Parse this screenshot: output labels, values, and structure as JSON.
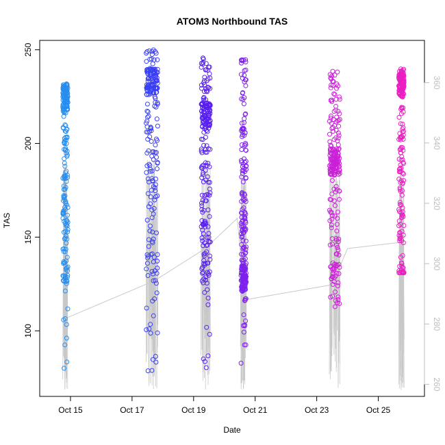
{
  "chart_data": {
    "type": "scatter",
    "title": "ATOM3 Northbound TAS",
    "xlabel": "Date",
    "ylabel": "TAS",
    "xlim": [
      "2015-10-14T00:00",
      "2015-10-26T12:00"
    ],
    "ylim": [
      65,
      255
    ],
    "y2lim": [
      256,
      374
    ],
    "x_ticks": [
      {
        "date": "2015-10-15",
        "label": "Oct 15"
      },
      {
        "date": "2015-10-17",
        "label": "Oct 17"
      },
      {
        "date": "2015-10-19",
        "label": "Oct 19"
      },
      {
        "date": "2015-10-21",
        "label": "Oct 21"
      },
      {
        "date": "2015-10-23",
        "label": "Oct 23"
      },
      {
        "date": "2015-10-25",
        "label": "Oct 25"
      }
    ],
    "y_ticks": [
      100,
      150,
      200,
      250
    ],
    "y2_ticks": [
      260,
      280,
      300,
      320,
      340,
      360
    ],
    "grid": false,
    "legend": "none",
    "colors": {
      "points_gradient": [
        "#23a6ee",
        "#2d5cf0",
        "#4b1ef2",
        "#9a22ea",
        "#d51fd4",
        "#f21fba"
      ],
      "line": "#c8c8c8",
      "axis": "#000000",
      "secondary_axis": "#bdbdbd"
    },
    "flights": [
      {
        "start": "2015-10-14T18:00",
        "end": "2015-10-14T22:00",
        "cluster_tas": 225,
        "tas_min": 75,
        "tas_max": 232
      },
      {
        "start": "2015-10-17T11:00",
        "end": "2015-10-17T20:00",
        "cluster_tas": 233,
        "tas_min": 73,
        "tas_max": 251
      },
      {
        "start": "2015-10-19T06:00",
        "end": "2015-10-19T13:00",
        "cluster_tas": 215,
        "tas_min": 75,
        "tas_max": 246
      },
      {
        "start": "2015-10-20T13:00",
        "end": "2015-10-20T17:00",
        "cluster_tas": 128,
        "tas_min": 78,
        "tas_max": 245
      },
      {
        "start": "2015-10-23T10:00",
        "end": "2015-10-23T18:00",
        "cluster_tas": 190,
        "tas_min": 109,
        "tas_max": 245
      },
      {
        "start": "2015-10-25T16:00",
        "end": "2015-10-25T20:00",
        "cluster_tas": 232,
        "tas_min": 131,
        "tas_max": 244
      }
    ],
    "line_series": {
      "axis": "right",
      "points": [
        {
          "x": "2015-10-14T21:00",
          "y": 282
        },
        {
          "x": "2015-10-17T10:00",
          "y": 293
        },
        {
          "x": "2015-10-17T20:00",
          "y": 295
        },
        {
          "x": "2015-10-19T09:00",
          "y": 305
        },
        {
          "x": "2015-10-20T10:00",
          "y": 315
        },
        {
          "x": "2015-10-20T16:00",
          "y": 288
        },
        {
          "x": "2015-10-23T12:00",
          "y": 293
        },
        {
          "x": "2015-10-24T00:00",
          "y": 305
        },
        {
          "x": "2015-10-25T16:00",
          "y": 307
        }
      ]
    }
  }
}
